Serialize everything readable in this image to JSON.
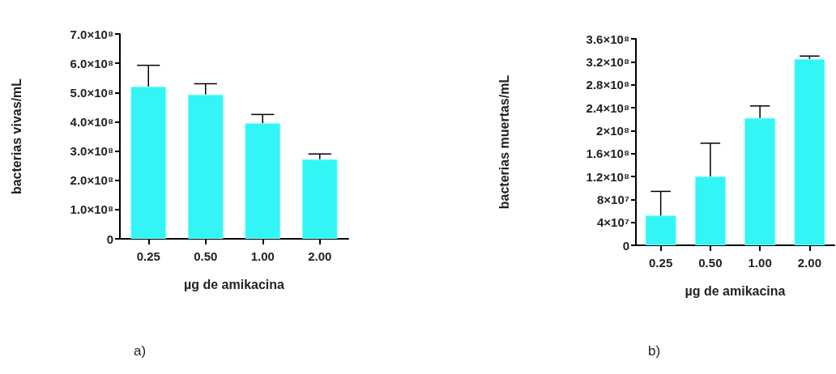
{
  "chart_data": [
    {
      "type": "bar",
      "xlabel": "µg de amikacina",
      "ylabel": "bacterias vivas/mL",
      "categories": [
        "0.25",
        "0.50",
        "1.00",
        "2.00"
      ],
      "series": [
        {
          "color": "#33f5f5",
          "values": [
            520000000,
            493000000,
            395000000,
            272000000
          ],
          "errors": [
            [
              520000000,
              593000000
            ],
            [
              493000000,
              530000000
            ],
            [
              395000000,
              425000000
            ],
            [
              272000000,
              290000000
            ]
          ]
        }
      ],
      "ylim": [
        0,
        700000000
      ],
      "yticks": [
        0,
        {
          "value": 100000000,
          "label": "1.0×10⁸"
        },
        {
          "value": 200000000,
          "label": "2.0×10⁸"
        },
        {
          "value": 300000000,
          "label": "3.0×10⁸"
        },
        {
          "value": 400000000,
          "label": "4.0×10⁸"
        },
        {
          "value": 500000000,
          "label": "5.0×10⁸"
        },
        {
          "value": 600000000,
          "label": "6.0×10⁸"
        },
        {
          "value": 700000000,
          "label": "7.0×10⁸"
        }
      ],
      "grid": false,
      "annotations": [
        "a)"
      ]
    },
    {
      "type": "bar",
      "xlabel": "µg de amikacina",
      "ylabel": "bacterias muertas/mL",
      "categories": [
        "0.25",
        "0.50",
        "1.00",
        "2.00"
      ],
      "series": [
        {
          "color": "#33f5f5",
          "values": [
            52000000,
            120000000,
            222000000,
            325000000
          ],
          "errors": [
            [
              52000000,
              94000000
            ],
            [
              120000000,
              178000000
            ],
            [
              222000000,
              243000000
            ],
            [
              325000000,
              330000000
            ]
          ]
        }
      ],
      "ylim": [
        0,
        360000000
      ],
      "yticks": [
        0,
        {
          "value": 40000000,
          "label": "4×10⁷"
        },
        {
          "value": 80000000,
          "label": "8×10⁷"
        },
        {
          "value": 120000000,
          "label": "1.2×10⁸"
        },
        {
          "value": 160000000,
          "label": "1.6×10⁸"
        },
        {
          "value": 200000000,
          "label": "2×10⁸"
        },
        {
          "value": 240000000,
          "label": "2.4×10⁸"
        },
        {
          "value": 280000000,
          "label": "2.8×10⁸"
        },
        {
          "value": 320000000,
          "label": "3.2×10⁸"
        },
        {
          "value": 360000000,
          "label": "3.6×10⁸"
        }
      ],
      "grid": false,
      "annotations": [
        "b)"
      ]
    }
  ]
}
